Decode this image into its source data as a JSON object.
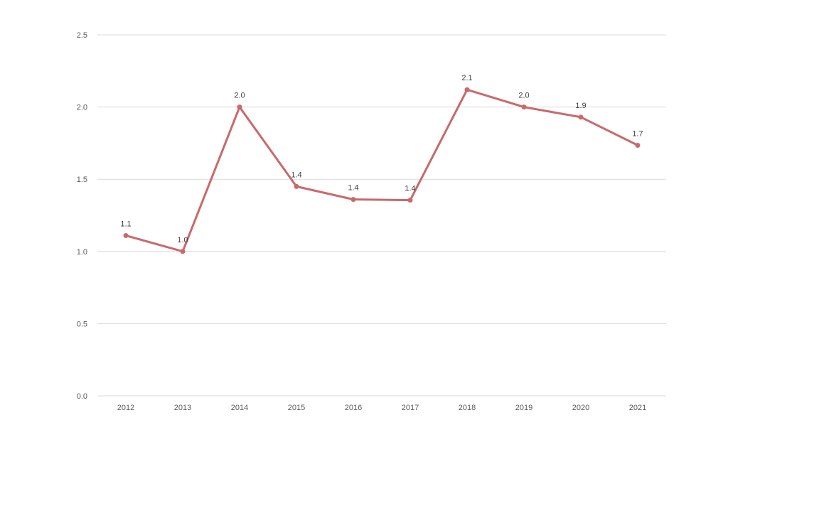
{
  "chart_data": {
    "type": "line",
    "title": "",
    "xlabel": "",
    "ylabel": "",
    "x": [
      "2012",
      "2013",
      "2014",
      "2015",
      "2016",
      "2017",
      "2018",
      "2019",
      "2020",
      "2021"
    ],
    "series": [
      {
        "values": [
          1.11,
          1.0,
          2.0,
          1.45,
          1.36,
          1.355,
          2.12,
          2.0,
          1.93,
          1.735
        ],
        "labels": [
          "1.1",
          "1.0",
          "2.0",
          "1.4",
          "1.4",
          "1.4",
          "2.1",
          "2.0",
          "1.9",
          "1.7"
        ],
        "color": "#c9696a"
      }
    ],
    "yticks": [
      "0.0",
      "0.5",
      "1.0",
      "1.5",
      "2.0",
      "2.5"
    ],
    "ylim": [
      0,
      2.5
    ],
    "grid": true,
    "legend": "none"
  }
}
